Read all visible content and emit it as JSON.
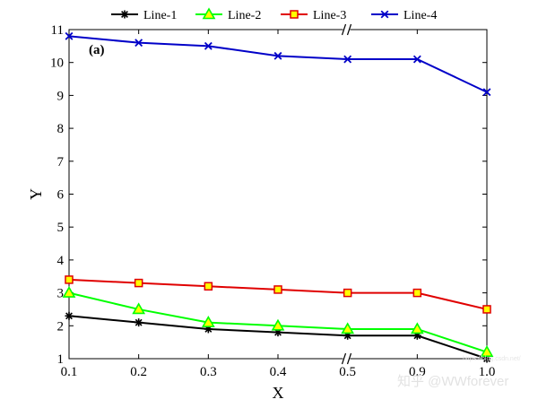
{
  "chart_data": {
    "type": "line",
    "panel_label": "(a)",
    "xlabel": "X",
    "ylabel": "Y",
    "categories": [
      "0.1",
      "0.2",
      "0.3",
      "0.4",
      "0.5",
      "0.9",
      "1.0"
    ],
    "y_ticks": [
      1,
      2,
      3,
      4,
      5,
      6,
      7,
      8,
      9,
      10,
      11
    ],
    "ylim": [
      1,
      11
    ],
    "axis_break_between": [
      "0.5",
      "0.9"
    ],
    "legend_position": "top",
    "series": [
      {
        "name": "Line-1",
        "color": "#000000",
        "marker": "asterisk",
        "values": [
          2.3,
          2.1,
          1.9,
          1.8,
          1.7,
          1.7,
          1.0
        ]
      },
      {
        "name": "Line-2",
        "color": "#00ff00",
        "marker_fill": "#ffff00",
        "marker": "triangle",
        "values": [
          3.0,
          2.5,
          2.1,
          2.0,
          1.9,
          1.9,
          1.2
        ]
      },
      {
        "name": "Line-3",
        "color": "#e00000",
        "marker_fill": "#ffff00",
        "marker": "square",
        "values": [
          3.4,
          3.3,
          3.2,
          3.1,
          3.0,
          3.0,
          2.5
        ]
      },
      {
        "name": "Line-4",
        "color": "#0000c8",
        "marker": "x",
        "values": [
          10.8,
          10.6,
          10.5,
          10.2,
          10.1,
          10.1,
          9.1
        ]
      }
    ]
  },
  "watermark": {
    "text": "知乎 @WWforever",
    "small_text": "https://blog.csdn.net/"
  }
}
